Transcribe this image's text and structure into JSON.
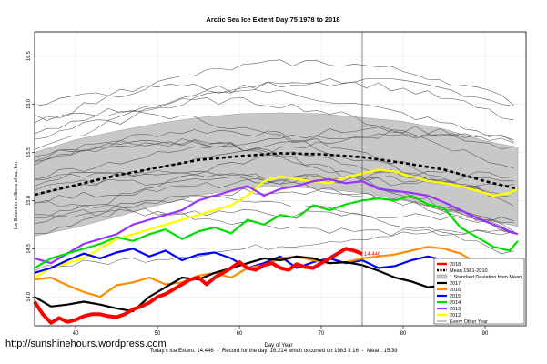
{
  "watermark": "http://sunshinehours.wordpress.com",
  "footer": {
    "todays_extent": "Today's Ice Extent: 14.446",
    "record": "Record for the day: 16.214 which occurred on 1983 3 16",
    "mean": "Mean: 15.39"
  },
  "chart_data": {
    "type": "line",
    "title": "Arctic Sea Ice Extent Day 75 1978 to 2018",
    "xlabel": "Day of Year",
    "ylabel": "Ice Extent in millions of sq. km",
    "xlim": [
      35,
      95
    ],
    "ylim": [
      13.7,
      16.75
    ],
    "xticks": [
      40,
      50,
      60,
      70,
      80,
      90
    ],
    "yticks": [
      14.0,
      14.5,
      15.0,
      15.5,
      16.0,
      16.5
    ],
    "ytick_labels": [
      "14.0",
      "14.5",
      "15.0",
      "15.5",
      "16.0",
      "16.5"
    ],
    "marker_day": 75,
    "grid": true,
    "legend_position": "bottom-right",
    "annotation": {
      "text": "14.446",
      "x": 75,
      "y": 14.446
    },
    "band": {
      "x": [
        35,
        40,
        45,
        50,
        55,
        60,
        65,
        70,
        75,
        80,
        85,
        90,
        94
      ],
      "upper": [
        15.5,
        15.63,
        15.72,
        15.8,
        15.86,
        15.9,
        15.91,
        15.9,
        15.86,
        15.82,
        15.74,
        15.62,
        15.55
      ],
      "lower": [
        14.63,
        14.72,
        14.83,
        14.95,
        15.05,
        15.12,
        15.15,
        15.12,
        15.08,
        15.0,
        14.9,
        14.8,
        14.73
      ]
    },
    "series": [
      {
        "name": "2018",
        "color": "#ff0000",
        "width": 4,
        "dash": "",
        "x": [
          35,
          36,
          37,
          38,
          39,
          40,
          41,
          42,
          43,
          44,
          45,
          46,
          47,
          48,
          49,
          50,
          51,
          52,
          53,
          54,
          55,
          56,
          57,
          58,
          59,
          60,
          61,
          62,
          63,
          64,
          65,
          66,
          67,
          68,
          69,
          70,
          71,
          72,
          73,
          74,
          75
        ],
        "y": [
          13.95,
          13.82,
          13.73,
          13.78,
          13.74,
          13.76,
          13.8,
          13.82,
          13.82,
          13.8,
          13.79,
          13.82,
          13.87,
          13.9,
          13.94,
          14.0,
          14.03,
          14.08,
          14.13,
          14.18,
          14.2,
          14.13,
          14.2,
          14.25,
          14.3,
          14.36,
          14.3,
          14.28,
          14.33,
          14.35,
          14.3,
          14.28,
          14.34,
          14.31,
          14.3,
          14.35,
          14.4,
          14.45,
          14.5,
          14.48,
          14.446
        ]
      },
      {
        "name": "Mean 1981-2010",
        "color": "#000000",
        "width": 2.6,
        "dash": "4,3",
        "x": [
          35,
          40,
          45,
          50,
          55,
          60,
          65,
          70,
          75,
          80,
          85,
          90,
          94
        ],
        "y": [
          15.06,
          15.16,
          15.26,
          15.34,
          15.42,
          15.46,
          15.49,
          15.48,
          15.45,
          15.39,
          15.32,
          15.2,
          15.12
        ]
      },
      {
        "name": "1 Standard Deviation from Mean",
        "color": "#000000",
        "width": 0,
        "dash": ""
      },
      {
        "name": "2017",
        "color": "#000000",
        "width": 2.2,
        "dash": "",
        "x": [
          35,
          37,
          39,
          41,
          43,
          45,
          47,
          49,
          51,
          53,
          55,
          57,
          59,
          61,
          63,
          65,
          67,
          69,
          71,
          73,
          75,
          77,
          79,
          81,
          83,
          85,
          87,
          89,
          91,
          93
        ],
        "y": [
          14.0,
          13.9,
          13.92,
          13.95,
          13.92,
          13.88,
          13.85,
          14.0,
          14.1,
          14.2,
          14.18,
          14.25,
          14.3,
          14.35,
          14.4,
          14.38,
          14.42,
          14.4,
          14.35,
          14.36,
          14.33,
          14.27,
          14.2,
          14.16,
          14.1,
          14.12,
          14.1,
          14.16,
          14.2,
          14.22
        ]
      },
      {
        "name": "2016",
        "color": "#ff8c00",
        "width": 2.2,
        "dash": "",
        "x": [
          35,
          37,
          39,
          41,
          43,
          45,
          47,
          49,
          51,
          53,
          55,
          57,
          59,
          61,
          63,
          65,
          67,
          69,
          71,
          73,
          75,
          77,
          79,
          81,
          83,
          85,
          87,
          89,
          91,
          93,
          94
        ],
        "y": [
          14.18,
          14.2,
          14.12,
          14.05,
          14.0,
          14.12,
          14.15,
          14.2,
          14.13,
          14.15,
          14.22,
          14.25,
          14.2,
          14.3,
          14.33,
          14.4,
          14.42,
          14.38,
          14.35,
          14.36,
          14.4,
          14.42,
          14.44,
          14.48,
          14.52,
          14.5,
          14.45,
          14.35,
          14.25,
          14.1,
          14.05
        ]
      },
      {
        "name": "2015",
        "color": "#0000ff",
        "width": 2.2,
        "dash": "",
        "x": [
          35,
          37,
          39,
          41,
          43,
          45,
          47,
          49,
          51,
          53,
          55,
          57,
          59,
          61,
          63,
          65,
          67,
          69,
          71,
          73,
          75,
          77,
          79,
          81,
          83,
          85,
          87,
          89,
          91,
          93
        ],
        "y": [
          14.25,
          14.3,
          14.38,
          14.45,
          14.4,
          14.46,
          14.5,
          14.42,
          14.48,
          14.38,
          14.44,
          14.46,
          14.4,
          14.3,
          14.35,
          14.42,
          14.3,
          14.36,
          14.4,
          14.35,
          14.38,
          14.3,
          14.32,
          14.38,
          14.42,
          14.38,
          14.3,
          14.35,
          14.3,
          14.25
        ]
      },
      {
        "name": "2014",
        "color": "#00dd00",
        "width": 2.2,
        "dash": "",
        "x": [
          35,
          37,
          39,
          41,
          43,
          45,
          47,
          49,
          51,
          53,
          55,
          57,
          59,
          61,
          63,
          65,
          67,
          69,
          71,
          73,
          75,
          77,
          79,
          81,
          83,
          85,
          87,
          89,
          91,
          93,
          94
        ],
        "y": [
          14.3,
          14.4,
          14.45,
          14.5,
          14.55,
          14.62,
          14.58,
          14.65,
          14.7,
          14.6,
          14.68,
          14.72,
          14.66,
          14.8,
          14.75,
          14.85,
          14.82,
          14.95,
          14.9,
          14.96,
          15.0,
          15.02,
          15.0,
          15.05,
          14.96,
          14.92,
          14.72,
          14.62,
          14.52,
          14.48,
          14.58
        ]
      },
      {
        "name": "2013",
        "color": "#9933ff",
        "width": 2.2,
        "dash": "",
        "x": [
          35,
          37,
          39,
          41,
          43,
          45,
          47,
          49,
          51,
          53,
          55,
          57,
          59,
          61,
          63,
          65,
          67,
          69,
          71,
          73,
          75,
          77,
          79,
          81,
          83,
          85,
          87,
          89,
          91,
          93,
          94
        ],
        "y": [
          14.4,
          14.35,
          14.45,
          14.55,
          14.6,
          14.65,
          14.75,
          14.8,
          14.85,
          14.9,
          15.0,
          15.05,
          15.1,
          15.15,
          15.05,
          15.12,
          15.15,
          15.2,
          15.22,
          15.18,
          15.2,
          15.12,
          15.1,
          15.08,
          15.05,
          14.98,
          14.9,
          14.82,
          14.75,
          14.68,
          14.65
        ]
      },
      {
        "name": "2012",
        "color": "#ffff00",
        "width": 2.4,
        "dash": "",
        "x": [
          35,
          37,
          39,
          41,
          43,
          45,
          47,
          49,
          51,
          53,
          55,
          57,
          59,
          61,
          63,
          65,
          67,
          69,
          71,
          73,
          75,
          77,
          79,
          81,
          83,
          85,
          87,
          89,
          91,
          93,
          94
        ],
        "y": [
          14.2,
          14.3,
          14.35,
          14.4,
          14.5,
          14.6,
          14.65,
          14.7,
          14.75,
          14.8,
          14.85,
          14.9,
          14.95,
          15.05,
          15.2,
          15.25,
          15.22,
          15.2,
          15.18,
          15.24,
          15.28,
          15.32,
          15.3,
          15.25,
          15.2,
          15.18,
          15.15,
          15.1,
          15.05,
          15.08,
          15.12
        ]
      },
      {
        "name": "Every Other Year",
        "color": "#444444",
        "width": 0.6,
        "dash": ""
      }
    ]
  }
}
